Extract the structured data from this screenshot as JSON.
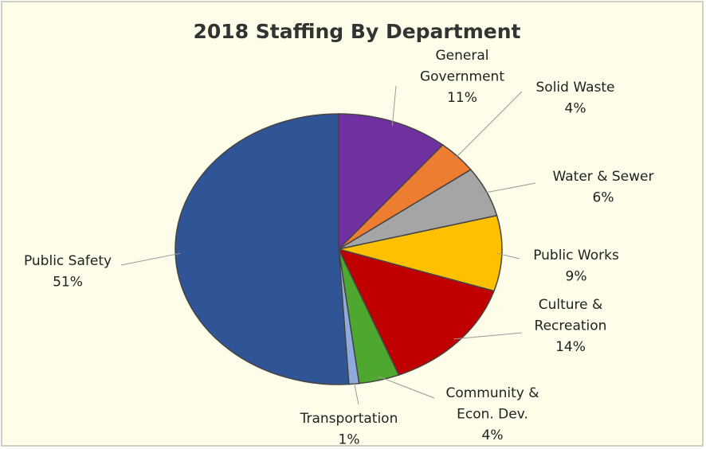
{
  "chart_data": {
    "type": "pie",
    "title": "2018 Staffing By Department",
    "categories": [
      "General\nGovernment",
      "Solid Waste",
      "Water & Sewer",
      "Public Works",
      "Culture &\nRecreation",
      "Community &\nEcon. Dev.",
      "Transportation",
      "Public Safety"
    ],
    "values": [
      11,
      4,
      6,
      9,
      14,
      4,
      1,
      51
    ],
    "value_labels": [
      "11%",
      "4%",
      "6%",
      "9%",
      "14%",
      "4%",
      "1%",
      "51%"
    ],
    "colors": [
      "#7030a0",
      "#ed7d31",
      "#a5a5a5",
      "#ffc000",
      "#c00000",
      "#4ea72e",
      "#8faadc",
      "#2f5597"
    ]
  }
}
